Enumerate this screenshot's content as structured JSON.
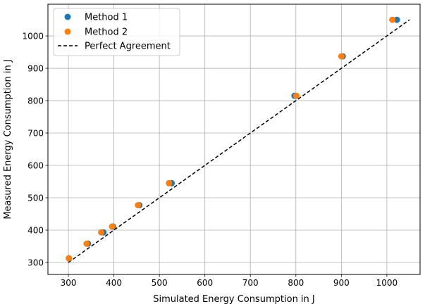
{
  "chart_data": {
    "type": "scatter",
    "xlabel": "Simulated Energy Consumption in J",
    "ylabel": "Measured Energy Consumption in J",
    "xlim": [
      255,
      1073
    ],
    "ylim": [
      263,
      1098
    ],
    "xticks": [
      300,
      400,
      500,
      600,
      700,
      800,
      900,
      1000
    ],
    "yticks": [
      300,
      400,
      500,
      600,
      700,
      800,
      900,
      1000
    ],
    "grid": true,
    "legend_position": "top-left",
    "series": [
      {
        "name": "Method 1",
        "color": "#1f77b4",
        "x": [
          301,
          343,
          377,
          398,
          456,
          527,
          797,
          903,
          1022
        ],
        "y": [
          313,
          358,
          393,
          411,
          477,
          545,
          815,
          937,
          1050
        ]
      },
      {
        "name": "Method 2",
        "color": "#ff7f0e",
        "x": [
          301,
          340,
          372,
          396,
          453,
          521,
          801,
          900,
          1012
        ],
        "y": [
          313,
          358,
          393,
          411,
          477,
          545,
          815,
          937,
          1050
        ]
      }
    ],
    "reference_line": {
      "name": "Perfect Agreement",
      "color": "#000000",
      "style": "dashed",
      "x": [
        300,
        1050
      ],
      "y": [
        300,
        1050
      ]
    }
  }
}
